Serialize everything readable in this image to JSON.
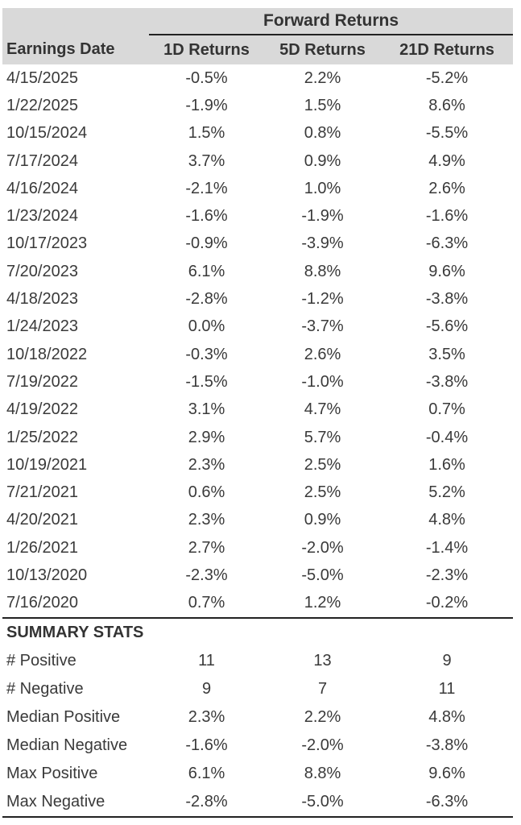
{
  "chart_data": {
    "type": "table",
    "group_header": "Forward Returns",
    "columns": [
      "Earnings Date",
      "1D Returns",
      "5D Returns",
      "21D Returns"
    ],
    "rows": [
      [
        "4/15/2025",
        "-0.5%",
        "2.2%",
        "-5.2%"
      ],
      [
        "1/22/2025",
        "-1.9%",
        "1.5%",
        "8.6%"
      ],
      [
        "10/15/2024",
        "1.5%",
        "0.8%",
        "-5.5%"
      ],
      [
        "7/17/2024",
        "3.7%",
        "0.9%",
        "4.9%"
      ],
      [
        "4/16/2024",
        "-2.1%",
        "1.0%",
        "2.6%"
      ],
      [
        "1/23/2024",
        "-1.6%",
        "-1.9%",
        "-1.6%"
      ],
      [
        "10/17/2023",
        "-0.9%",
        "-3.9%",
        "-6.3%"
      ],
      [
        "7/20/2023",
        "6.1%",
        "8.8%",
        "9.6%"
      ],
      [
        "4/18/2023",
        "-2.8%",
        "-1.2%",
        "-3.8%"
      ],
      [
        "1/24/2023",
        "0.0%",
        "-3.7%",
        "-5.6%"
      ],
      [
        "10/18/2022",
        "-0.3%",
        "2.6%",
        "3.5%"
      ],
      [
        "7/19/2022",
        "-1.5%",
        "-1.0%",
        "-3.8%"
      ],
      [
        "4/19/2022",
        "3.1%",
        "4.7%",
        "0.7%"
      ],
      [
        "1/25/2022",
        "2.9%",
        "5.7%",
        "-0.4%"
      ],
      [
        "10/19/2021",
        "2.3%",
        "2.5%",
        "1.6%"
      ],
      [
        "7/21/2021",
        "0.6%",
        "2.5%",
        "5.2%"
      ],
      [
        "4/20/2021",
        "2.3%",
        "0.9%",
        "4.8%"
      ],
      [
        "1/26/2021",
        "2.7%",
        "-2.0%",
        "-1.4%"
      ],
      [
        "10/13/2020",
        "-2.3%",
        "-5.0%",
        "-2.3%"
      ],
      [
        "7/16/2020",
        "0.7%",
        "1.2%",
        "-0.2%"
      ]
    ],
    "summary_title": "SUMMARY STATS",
    "summary_rows": [
      [
        "# Positive",
        "11",
        "13",
        "9"
      ],
      [
        "# Negative",
        "9",
        "7",
        "11"
      ],
      [
        "Median Positive",
        "2.3%",
        "2.2%",
        "4.8%"
      ],
      [
        "Median Negative",
        "-1.6%",
        "-2.0%",
        "-3.8%"
      ],
      [
        "Max Positive",
        "6.1%",
        "8.8%",
        "9.6%"
      ],
      [
        "Max Negative",
        "-2.8%",
        "-5.0%",
        "-6.3%"
      ]
    ],
    "layout": {
      "legend": "none",
      "grid": "off"
    },
    "colors": {
      "header_bg": "#d9d9d9",
      "rule": "#222222",
      "text": "#3a3a3a"
    }
  }
}
